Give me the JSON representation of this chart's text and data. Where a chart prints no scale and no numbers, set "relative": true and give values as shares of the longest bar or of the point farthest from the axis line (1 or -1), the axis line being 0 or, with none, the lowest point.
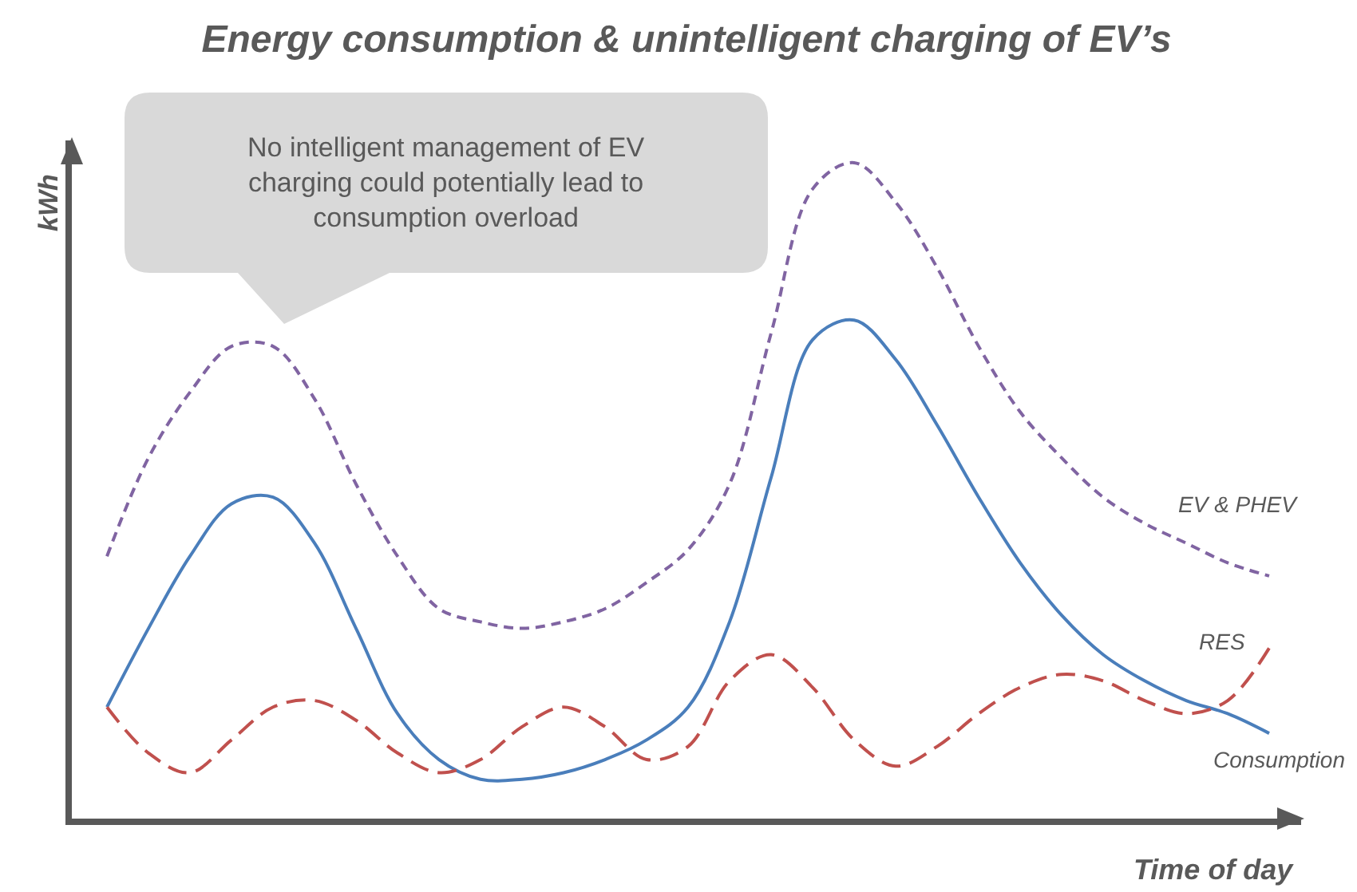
{
  "chart_data": {
    "type": "line",
    "relative": true,
    "title": "Energy consumption & unintelligent charging of EV’s",
    "xlabel": "Time of day",
    "ylabel": "kWh",
    "annotations": [
      "No intelligent management of EV charging could potentially lead to consumption overload"
    ],
    "categories": [
      null,
      null,
      null,
      null,
      null,
      null,
      null,
      null,
      null,
      null,
      null,
      null,
      null,
      null,
      null,
      null,
      null,
      null,
      null,
      null,
      null,
      null,
      null,
      null,
      null,
      null,
      null,
      null,
      null
    ],
    "series": [
      {
        "name": "Consumption",
        "color": "#4a7ebb",
        "line_style": "solid",
        "values": [
          0.17,
          0.29,
          0.4,
          0.48,
          0.49,
          0.42,
          0.29,
          0.16,
          0.09,
          0.06,
          0.06,
          0.07,
          0.09,
          0.12,
          0.17,
          0.3,
          0.52,
          0.73,
          0.76,
          0.7,
          0.6,
          0.49,
          0.39,
          0.31,
          0.25,
          0.21,
          0.18,
          0.16,
          0.13
        ]
      },
      {
        "name": "RES",
        "color": "#c0504d",
        "line_style": "dashed",
        "values": [
          0.17,
          0.1,
          0.07,
          0.12,
          0.17,
          0.18,
          0.15,
          0.1,
          0.07,
          0.09,
          0.14,
          0.17,
          0.14,
          0.09,
          0.11,
          0.21,
          0.25,
          0.2,
          0.12,
          0.08,
          0.11,
          0.16,
          0.2,
          0.22,
          0.21,
          0.18,
          0.16,
          0.18,
          0.26
        ]
      },
      {
        "name": "EV & PHEV",
        "color": "#8064a2",
        "line_style": "dashed",
        "values": [
          0.4,
          0.55,
          0.65,
          0.72,
          0.72,
          0.64,
          0.51,
          0.4,
          0.32,
          0.3,
          0.29,
          0.3,
          0.32,
          0.36,
          0.41,
          0.51,
          0.74,
          0.96,
          1.0,
          0.94,
          0.84,
          0.72,
          0.62,
          0.55,
          0.49,
          0.45,
          0.42,
          0.39,
          0.37
        ]
      }
    ]
  }
}
